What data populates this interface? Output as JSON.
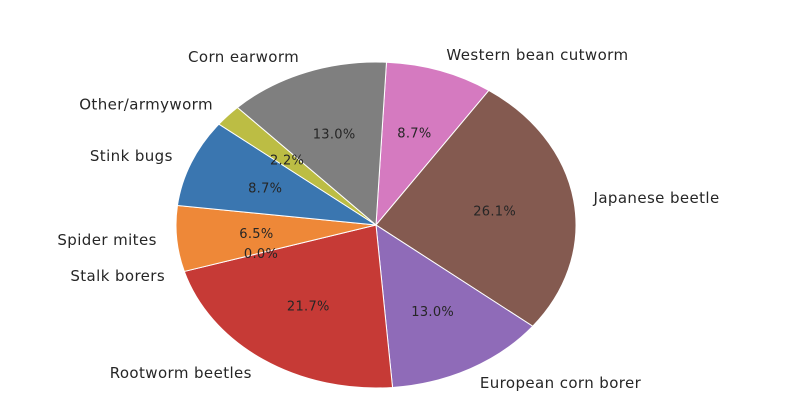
{
  "chart_data": {
    "type": "pie",
    "title": "",
    "categories": [
      "Western bean cutworm",
      "Japanese beetle",
      "European corn borer",
      "Rootworm beetles",
      "Stalk borers",
      "Spider mites",
      "Stink bugs",
      "Other/armyworm",
      "Corn earworm"
    ],
    "values": [
      8.7,
      26.1,
      13.0,
      21.7,
      0.0,
      6.5,
      8.7,
      2.2,
      13.0
    ],
    "percent_labels": [
      "8.7%",
      "26.1%",
      "13.0%",
      "21.7%",
      "0.0%",
      "6.5%",
      "8.7%",
      "2.2%",
      "13.0%"
    ],
    "colors": [
      "#d57ac0",
      "#845a50",
      "#8f6bb8",
      "#c63a36",
      "#a0a0a0",
      "#ee8838",
      "#3a76b0",
      "#bcbd44",
      "#7f7f7f"
    ],
    "legend": "none"
  }
}
